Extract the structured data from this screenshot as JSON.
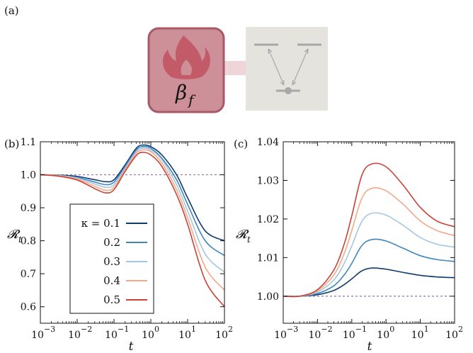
{
  "panel_a": {
    "label": "(a)",
    "bath_label": "β",
    "bath_sub": "f",
    "colors": {
      "bath_fill": "#cd8f98",
      "bath_border": "#a85866",
      "flame": "#c25a68",
      "coupling": "#efd4d8",
      "system_bg": "#e4e3de",
      "level": "#a8a8a8"
    }
  },
  "chart_data": [
    {
      "panel": "(b)",
      "type": "line",
      "x_scale": "log",
      "xlim": [
        0.001,
        100
      ],
      "ylim": [
        0.55,
        1.1
      ],
      "xlabel": "t",
      "ylabel": "𝓡",
      "ylabel_sub": "t",
      "x_ticks": [
        {
          "v": 0.001,
          "b": "10",
          "e": "−3"
        },
        {
          "v": 0.01,
          "b": "10",
          "e": "−2"
        },
        {
          "v": 0.1,
          "b": "10",
          "e": "−1"
        },
        {
          "v": 1,
          "b": "10",
          "e": "0"
        },
        {
          "v": 10,
          "b": "10",
          "e": "1"
        },
        {
          "v": 100,
          "b": "10",
          "e": "2"
        }
      ],
      "y_ticks": [
        {
          "v": 0.6,
          "t": "0.6"
        },
        {
          "v": 0.7,
          "t": "0.7"
        },
        {
          "v": 0.8,
          "t": "0.8"
        },
        {
          "v": 0.9,
          "t": "0.9"
        },
        {
          "v": 1.0,
          "t": "1.0"
        },
        {
          "v": 1.1,
          "t": "1.1"
        }
      ],
      "reference_line": 1.0,
      "legend": {
        "position": "lower-left",
        "entries": [
          "κ = 0.1",
          "0.2",
          "0.3",
          "0.4",
          "0.5"
        ]
      },
      "x": [
        0.001,
        0.003,
        0.01,
        0.03,
        0.06,
        0.1,
        0.2,
        0.4,
        0.6,
        1,
        2,
        5,
        10,
        30,
        100
      ],
      "series": [
        {
          "color": "#0e3a6e",
          "values": [
            1.0,
            0.999,
            0.995,
            0.985,
            0.979,
            0.985,
            1.03,
            1.08,
            1.09,
            1.085,
            1.06,
            1.0,
            0.93,
            0.83,
            0.8
          ]
        },
        {
          "color": "#3f86bd",
          "values": [
            1.0,
            0.998,
            0.992,
            0.978,
            0.97,
            0.978,
            1.025,
            1.075,
            1.085,
            1.08,
            1.05,
            0.985,
            0.91,
            0.8,
            0.755
          ]
        },
        {
          "color": "#a4c7e0",
          "values": [
            1.0,
            0.998,
            0.99,
            0.972,
            0.962,
            0.97,
            1.02,
            1.07,
            1.08,
            1.075,
            1.045,
            0.97,
            0.89,
            0.76,
            0.705
          ]
        },
        {
          "color": "#f3a988",
          "values": [
            1.0,
            0.997,
            0.987,
            0.965,
            0.953,
            0.962,
            1.015,
            1.065,
            1.075,
            1.07,
            1.035,
            0.955,
            0.87,
            0.72,
            0.65
          ]
        },
        {
          "color": "#cc4135",
          "values": [
            1.0,
            0.996,
            0.984,
            0.958,
            0.945,
            0.955,
            1.01,
            1.058,
            1.068,
            1.06,
            1.025,
            0.94,
            0.85,
            0.68,
            0.6
          ]
        }
      ]
    },
    {
      "panel": "(c)",
      "type": "line",
      "x_scale": "log",
      "xlim": [
        0.001,
        100
      ],
      "ylim": [
        0.993,
        1.04
      ],
      "xlabel": "t",
      "ylabel": "𝓡",
      "ylabel_sub": "t",
      "x_ticks": [
        {
          "v": 0.001,
          "b": "10",
          "e": "−3"
        },
        {
          "v": 0.01,
          "b": "10",
          "e": "−2"
        },
        {
          "v": 0.1,
          "b": "10",
          "e": "−1"
        },
        {
          "v": 1,
          "b": "10",
          "e": "0"
        },
        {
          "v": 10,
          "b": "10",
          "e": "1"
        },
        {
          "v": 100,
          "b": "10",
          "e": "2"
        }
      ],
      "y_ticks": [
        {
          "v": 1.0,
          "t": "1.00"
        },
        {
          "v": 1.01,
          "t": "1.01"
        },
        {
          "v": 1.02,
          "t": "1.02"
        },
        {
          "v": 1.03,
          "t": "1.03"
        },
        {
          "v": 1.04,
          "t": "1.04"
        }
      ],
      "reference_line": 1.0,
      "x": [
        0.001,
        0.003,
        0.01,
        0.03,
        0.06,
        0.1,
        0.2,
        0.4,
        1,
        3,
        10,
        30,
        100
      ],
      "series": [
        {
          "color": "#0e3a6e",
          "values": [
            1.0,
            1.0,
            1.0004,
            1.0015,
            1.003,
            1.0045,
            1.0066,
            1.0073,
            1.007,
            1.0062,
            1.0054,
            1.005,
            1.0048
          ]
        },
        {
          "color": "#3f86bd",
          "values": [
            1.0,
            1.0,
            1.0007,
            1.0027,
            1.0055,
            1.0085,
            1.0132,
            1.0147,
            1.0143,
            1.0125,
            1.0105,
            1.0095,
            1.009
          ]
        },
        {
          "color": "#a4c7e0",
          "values": [
            1.0,
            1.0,
            1.0011,
            1.0042,
            1.0085,
            1.013,
            1.0195,
            1.0215,
            1.021,
            1.0185,
            1.0152,
            1.0135,
            1.0127
          ]
        },
        {
          "color": "#f3a988",
          "values": [
            1.0,
            1.0,
            1.0014,
            1.0055,
            1.011,
            1.017,
            1.0255,
            1.028,
            1.0273,
            1.024,
            1.0195,
            1.017,
            1.0157
          ]
        },
        {
          "color": "#cc4135",
          "values": [
            1.0,
            1.0,
            1.0017,
            1.0068,
            1.0135,
            1.0208,
            1.0315,
            1.0343,
            1.0335,
            1.029,
            1.023,
            1.0195,
            1.018
          ]
        }
      ]
    }
  ]
}
